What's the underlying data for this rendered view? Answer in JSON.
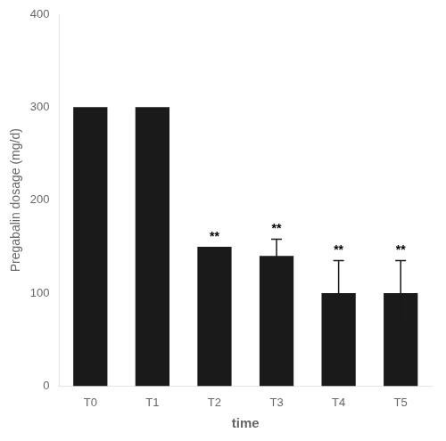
{
  "chart_data": {
    "type": "bar",
    "categories": [
      "T0",
      "T1",
      "T2",
      "T3",
      "T4",
      "T5"
    ],
    "values": [
      300,
      300,
      150,
      140,
      100,
      100
    ],
    "errors": [
      0,
      0,
      0,
      18,
      35,
      35
    ],
    "color": "#1a1a1a",
    "xlabel": "time",
    "ylabel": "Pregabalin dosage (mg/d)",
    "ylim": [
      0,
      400
    ],
    "yticks": [
      0,
      100,
      200,
      300,
      400
    ],
    "grid": false,
    "annotations": [
      {
        "x": "T2",
        "text": "**"
      },
      {
        "x": "T3",
        "text": "**"
      },
      {
        "x": "T4",
        "text": "**"
      },
      {
        "x": "T5",
        "text": "**"
      }
    ]
  }
}
